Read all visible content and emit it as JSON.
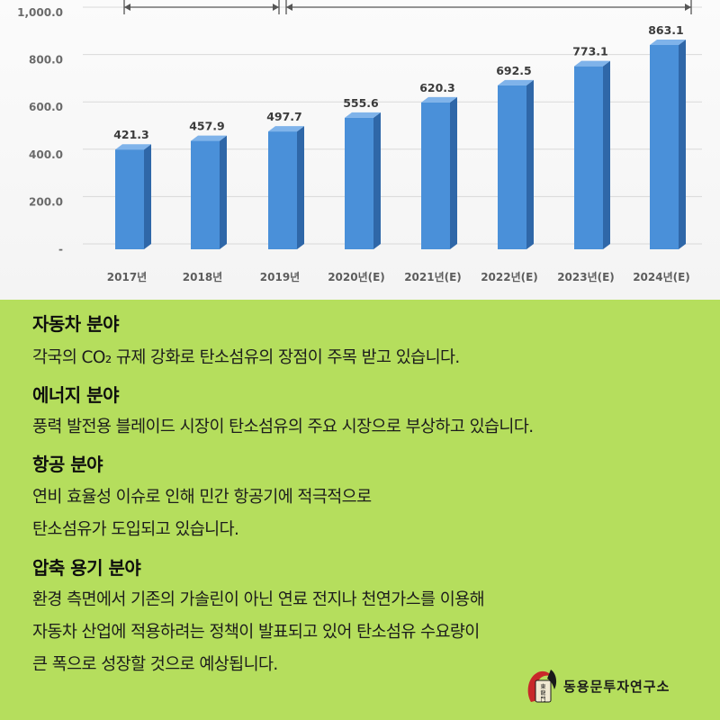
{
  "chart_data": {
    "type": "bar",
    "categories": [
      "2017년",
      "2018년",
      "2019년",
      "2020년(E)",
      "2021년(E)",
      "2022년(E)",
      "2023년(E)",
      "2024년(E)"
    ],
    "values": [
      421.3,
      457.9,
      497.7,
      555.6,
      620.3,
      692.5,
      773.1,
      863.1
    ],
    "value_labels": [
      "421.3",
      "457.9",
      "497.7",
      "555.6",
      "620.3",
      "692.5",
      "773.1",
      "863.1"
    ],
    "y_ticks": [
      "-",
      "200.0",
      "400.0",
      "600.0",
      "800.0",
      "1,000.0"
    ],
    "y_tick_values": [
      0,
      200,
      400,
      600,
      800,
      1000
    ],
    "ylim": [
      0,
      1000
    ],
    "grid": true,
    "bar_color": "#4a90d9",
    "bar_side_color": "#2f67a8",
    "bar_top_color": "#7fb3ea"
  },
  "sections": [
    {
      "title": "자동차 분야",
      "lines": [
        "각국의 CO₂ 규제 강화로 탄소섬유의 장점이 주목 받고 있습니다."
      ]
    },
    {
      "title": "에너지 분야",
      "lines": [
        "풍력 발전용 블레이드 시장이 탄소섬유의 주요 시장으로 부상하고 있습니다."
      ]
    },
    {
      "title": "항공 분야",
      "lines": [
        "연비 효율성 이슈로 인해 민간 항공기에 적극적으로",
        "탄소섬유가 도입되고 있습니다."
      ]
    },
    {
      "title": "압축 용기 분야",
      "lines": [
        "환경 측면에서 기존의 가솔린이 아닌 연료 전지나 천연가스를 이용해",
        "자동차 산업에 적용하려는 정책이 발표되고 있어 탄소섬유 수요량이",
        "큰 폭으로 성장할 것으로 예상됩니다."
      ]
    }
  ],
  "logo": {
    "text": "동용문투자연구소",
    "emblem_text": "東龍門"
  },
  "colors": {
    "panel_bg": "#b5de5d",
    "chart_bg": "#f6f6f6"
  }
}
